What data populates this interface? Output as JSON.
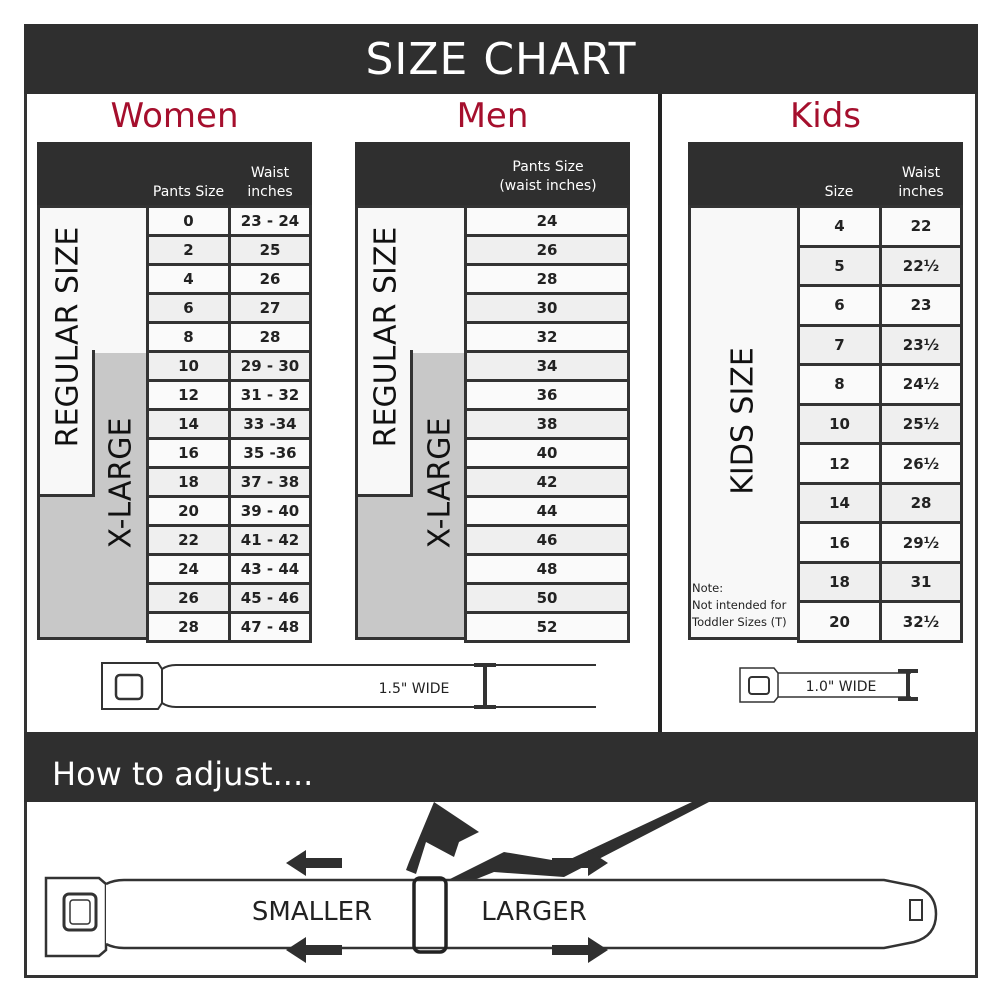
{
  "title": "SIZE CHART",
  "women": {
    "title": "Women",
    "col_headers": [
      "Pants Size",
      "Waist\ninches"
    ],
    "regular_label": "REGULAR SIZE",
    "xlarge_label": "X-LARGE",
    "rows": [
      [
        "0",
        "23 - 24"
      ],
      [
        "2",
        "25"
      ],
      [
        "4",
        "26"
      ],
      [
        "6",
        "27"
      ],
      [
        "8",
        "28"
      ],
      [
        "10",
        "29 - 30"
      ],
      [
        "12",
        "31 - 32"
      ],
      [
        "14",
        "33 -34"
      ],
      [
        "16",
        "35 -36"
      ],
      [
        "18",
        "37 - 38"
      ],
      [
        "20",
        "39 - 40"
      ],
      [
        "22",
        "41 - 42"
      ],
      [
        "24",
        "43 - 44"
      ],
      [
        "26",
        "45 - 46"
      ],
      [
        "28",
        "47 - 48"
      ]
    ],
    "belt_width": "1.5\" WIDE"
  },
  "men": {
    "title": "Men",
    "col_header": "Pants Size\n(waist inches)",
    "regular_label": "REGULAR SIZE",
    "xlarge_label": "X-LARGE",
    "rows": [
      "24",
      "26",
      "28",
      "30",
      "32",
      "34",
      "36",
      "38",
      "40",
      "42",
      "44",
      "46",
      "48",
      "50",
      "52"
    ]
  },
  "kids": {
    "title": "Kids",
    "col_headers": [
      "Size",
      "Waist\ninches"
    ],
    "size_label": "KIDS SIZE",
    "note": "Note:\nNot intended for\nToddler Sizes (T)",
    "rows": [
      [
        "4",
        "22"
      ],
      [
        "5",
        "22½"
      ],
      [
        "6",
        "23"
      ],
      [
        "7",
        "23½"
      ],
      [
        "8",
        "24½"
      ],
      [
        "10",
        "25½"
      ],
      [
        "12",
        "26½"
      ],
      [
        "14",
        "28"
      ],
      [
        "16",
        "29½"
      ],
      [
        "18",
        "31"
      ],
      [
        "20",
        "32½"
      ]
    ],
    "belt_width": "1.0\" WIDE"
  },
  "adjust": {
    "title": "How to adjust....",
    "smaller": "SMALLER",
    "larger": "LARGER"
  },
  "colors": {
    "accent": "#a50f2d",
    "dark": "#2f2f2f",
    "xlarge_gray": "#c8c8c8",
    "row_alt": "#efefef"
  }
}
